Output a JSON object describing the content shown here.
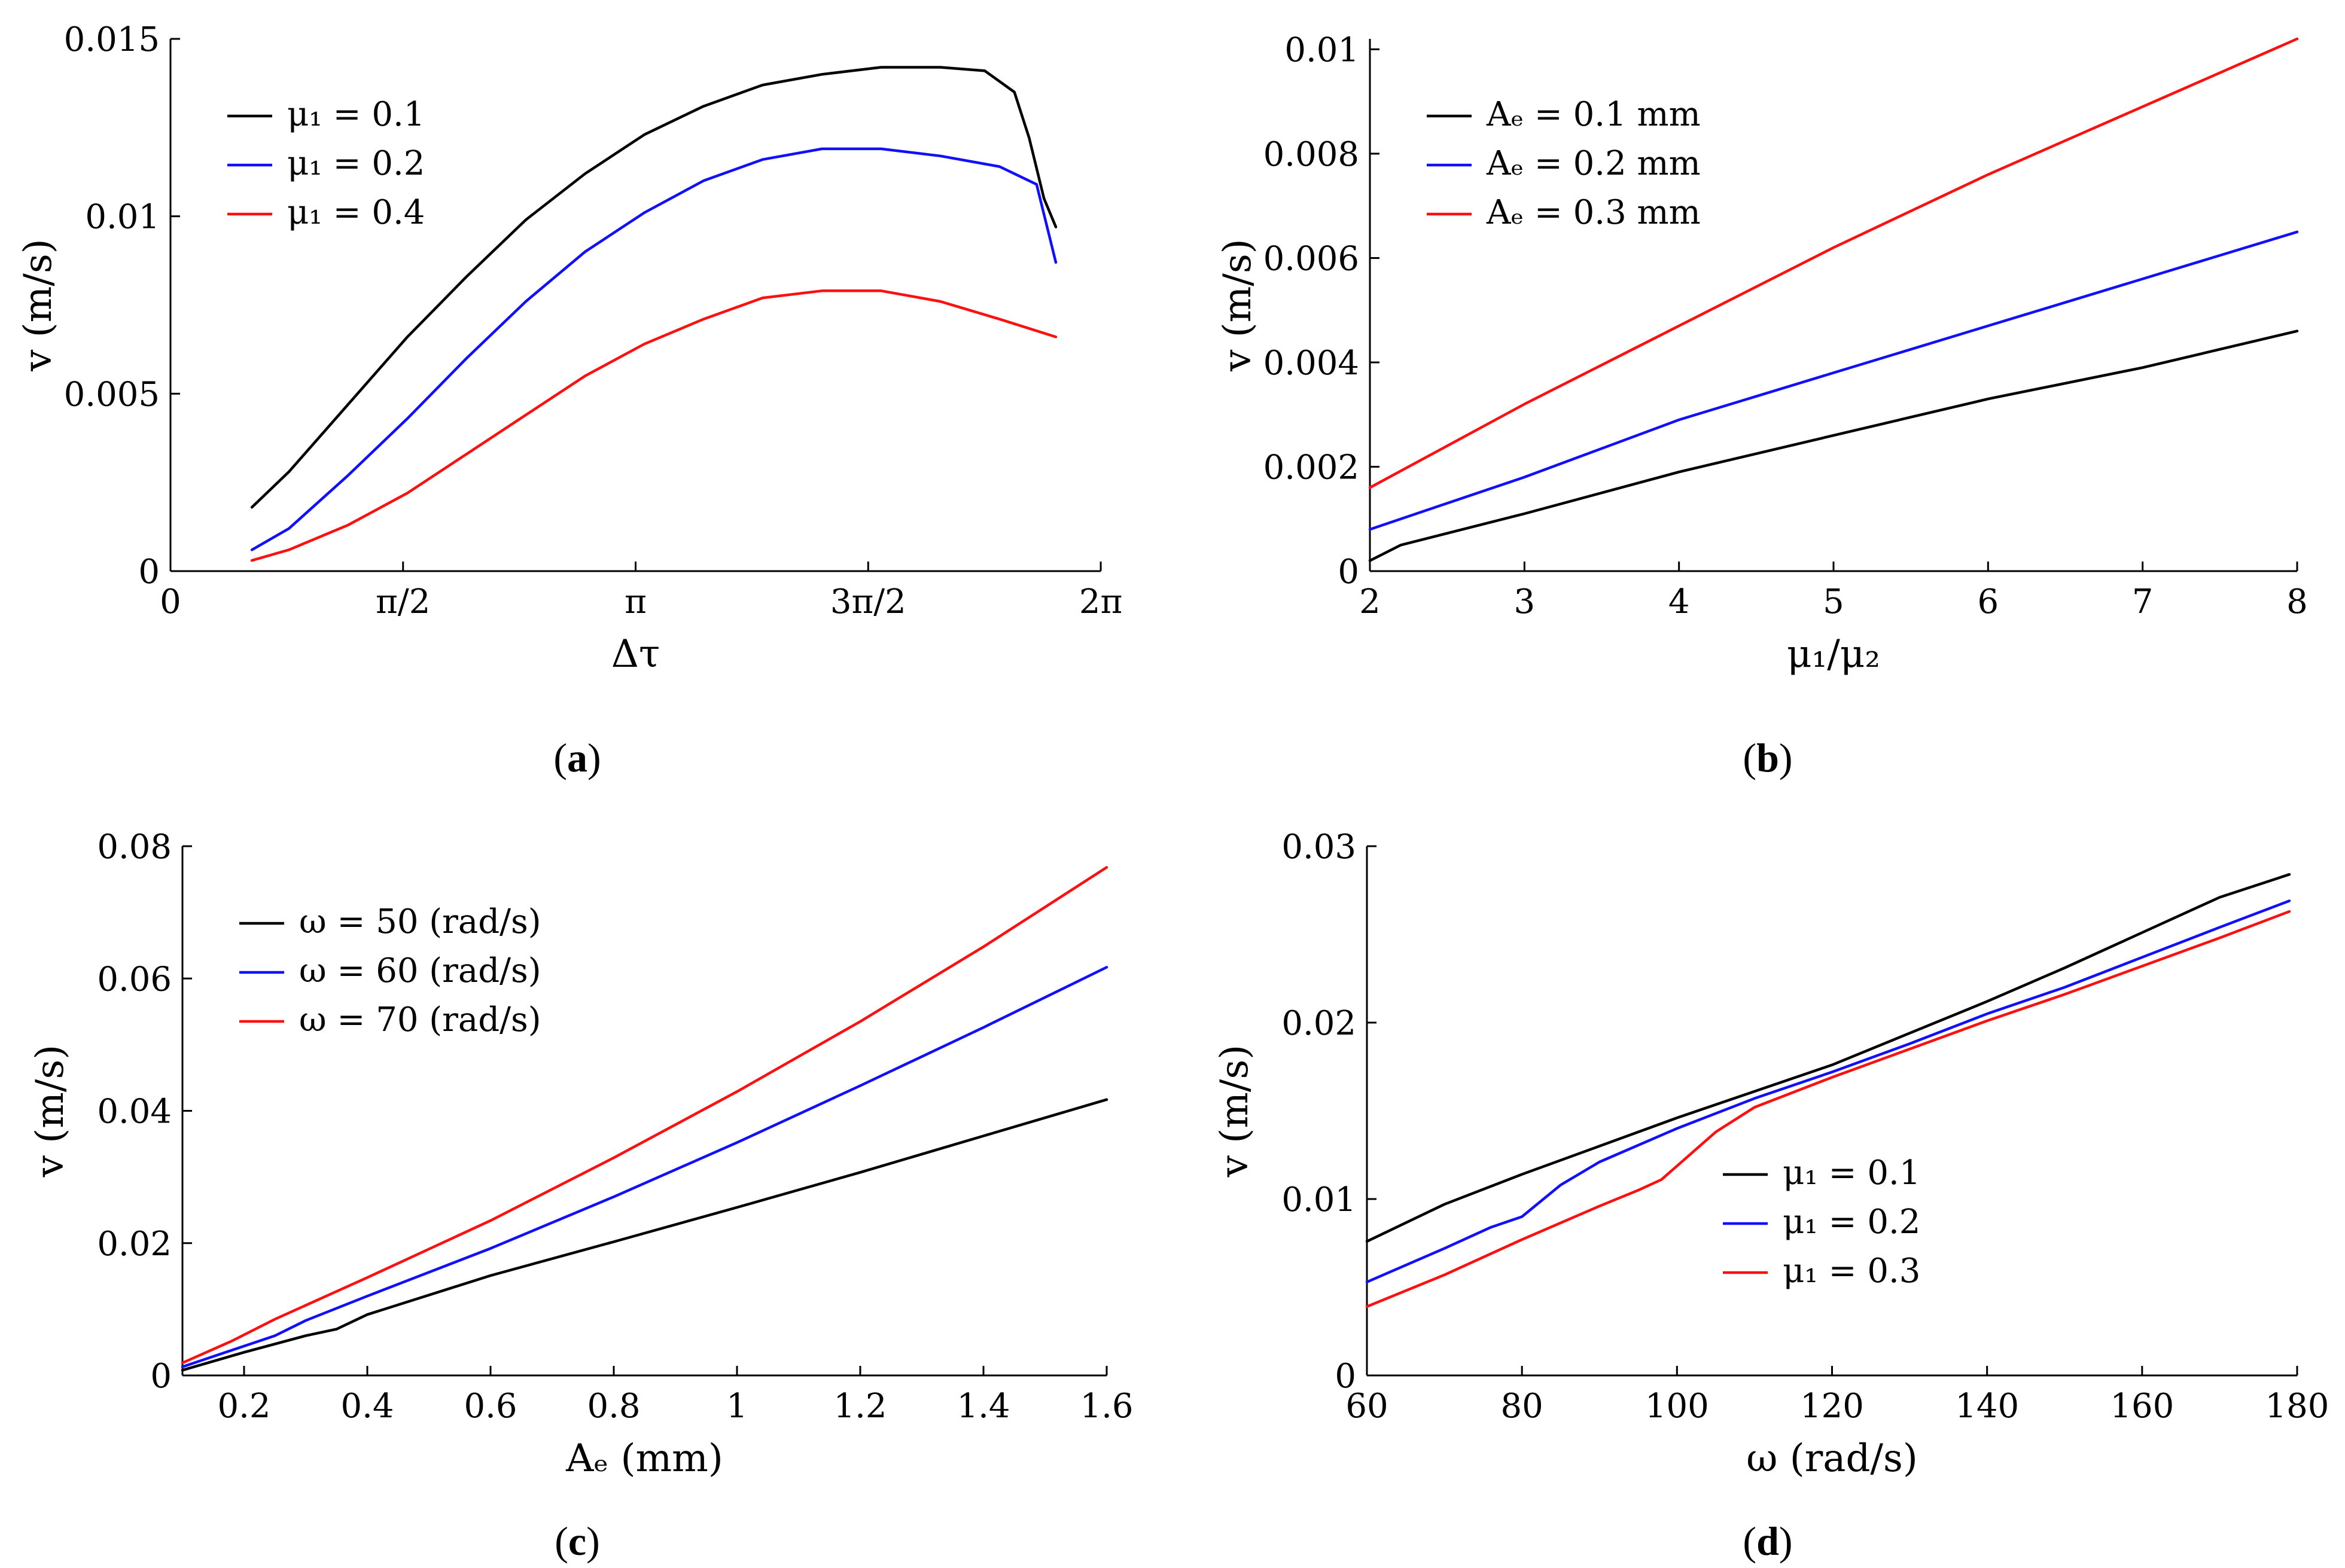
{
  "figure": {
    "colors": {
      "black": "#000000",
      "blue": "#1010ff",
      "red": "#ff1010"
    }
  },
  "chart_data": [
    {
      "id": "a",
      "type": "line",
      "caption_letter": "a",
      "xlabel": "Δτ",
      "ylabel": "v (m/s)",
      "xlim": [
        0,
        6.283
      ],
      "ylim": [
        0,
        0.015
      ],
      "x_ticks": [
        0,
        1.5708,
        3.1416,
        4.7124,
        6.2832
      ],
      "x_tick_labels": [
        "0",
        "π/2",
        "π",
        "3π/2",
        "2π"
      ],
      "y_ticks": [
        0,
        0.005,
        0.01,
        0.015
      ],
      "y_tick_labels": [
        "0",
        "0.005",
        "0.01",
        "0.015"
      ],
      "legend_position": "top-left",
      "series": [
        {
          "name": "μ₁ = 0.1",
          "color": "#000000",
          "x": [
            0.55,
            0.8,
            1.2,
            1.6,
            2.0,
            2.4,
            2.8,
            3.2,
            3.6,
            4.0,
            4.4,
            4.8,
            5.2,
            5.5,
            5.7,
            5.8,
            5.9,
            5.98
          ],
          "y": [
            0.0018,
            0.0028,
            0.0047,
            0.0066,
            0.0083,
            0.0099,
            0.0112,
            0.0123,
            0.0131,
            0.0137,
            0.014,
            0.0142,
            0.0142,
            0.0141,
            0.0135,
            0.0122,
            0.0105,
            0.0097
          ]
        },
        {
          "name": "μ₁ = 0.2",
          "color": "#1010ff",
          "x": [
            0.55,
            0.8,
            1.2,
            1.6,
            2.0,
            2.4,
            2.8,
            3.2,
            3.6,
            4.0,
            4.4,
            4.8,
            5.2,
            5.6,
            5.85,
            5.98
          ],
          "y": [
            0.0006,
            0.0012,
            0.0027,
            0.0043,
            0.006,
            0.0076,
            0.009,
            0.0101,
            0.011,
            0.0116,
            0.0119,
            0.0119,
            0.0117,
            0.0114,
            0.0109,
            0.0087
          ]
        },
        {
          "name": "μ₁ = 0.4",
          "color": "#ff1010",
          "x": [
            0.55,
            0.8,
            1.2,
            1.6,
            2.0,
            2.4,
            2.8,
            3.2,
            3.6,
            4.0,
            4.4,
            4.8,
            5.2,
            5.6,
            5.98
          ],
          "y": [
            0.0003,
            0.0006,
            0.0013,
            0.0022,
            0.0033,
            0.0044,
            0.0055,
            0.0064,
            0.0071,
            0.0077,
            0.0079,
            0.0079,
            0.0076,
            0.0071,
            0.0066
          ]
        }
      ]
    },
    {
      "id": "b",
      "type": "line",
      "caption_letter": "b",
      "xlabel": "μ₁/μ₂",
      "ylabel": "v (m/s)",
      "xlim": [
        2,
        8
      ],
      "ylim": [
        0,
        0.0102
      ],
      "x_ticks": [
        2,
        3,
        4,
        5,
        6,
        7,
        8
      ],
      "x_tick_labels": [
        "2",
        "3",
        "4",
        "5",
        "6",
        "7",
        "8"
      ],
      "y_ticks": [
        0,
        0.002,
        0.004,
        0.006,
        0.008,
        0.01
      ],
      "y_tick_labels": [
        "0",
        "0.002",
        "0.004",
        "0.006",
        "0.008",
        "0.01"
      ],
      "legend_position": "top-left",
      "series": [
        {
          "name": "Aₑ = 0.1 mm",
          "color": "#000000",
          "x": [
            2,
            2.2,
            3,
            4,
            5,
            6,
            7,
            8
          ],
          "y": [
            0.0002,
            0.0005,
            0.0011,
            0.0019,
            0.0026,
            0.0033,
            0.0039,
            0.0046
          ]
        },
        {
          "name": "Aₑ = 0.2 mm",
          "color": "#1010ff",
          "x": [
            2,
            3,
            4,
            5,
            6,
            7,
            8
          ],
          "y": [
            0.0008,
            0.0018,
            0.0029,
            0.0038,
            0.0047,
            0.0056,
            0.0065
          ]
        },
        {
          "name": "Aₑ = 0.3 mm",
          "color": "#ff1010",
          "x": [
            2,
            3,
            4,
            5,
            6,
            7,
            8
          ],
          "y": [
            0.0016,
            0.0032,
            0.0047,
            0.0062,
            0.0076,
            0.0089,
            0.0102
          ]
        }
      ]
    },
    {
      "id": "c",
      "type": "line",
      "caption_letter": "c",
      "xlabel": "Aₑ (mm)",
      "ylabel": "v (m/s)",
      "xlim": [
        0.1,
        1.6
      ],
      "ylim": [
        0,
        0.08
      ],
      "x_ticks": [
        0.2,
        0.4,
        0.6,
        0.8,
        1.0,
        1.2,
        1.4,
        1.6
      ],
      "x_tick_labels": [
        "0.2",
        "0.4",
        "0.6",
        "0.8",
        "1",
        "1.2",
        "1.4",
        "1.6"
      ],
      "y_ticks": [
        0,
        0.02,
        0.04,
        0.06,
        0.08
      ],
      "y_tick_labels": [
        "0",
        "0.02",
        "0.04",
        "0.06",
        "0.08"
      ],
      "legend_position": "top-left",
      "series": [
        {
          "name": "ω = 50 (rad/s)",
          "color": "#000000",
          "x": [
            0.1,
            0.2,
            0.3,
            0.35,
            0.4,
            0.6,
            0.8,
            1.0,
            1.2,
            1.4,
            1.6
          ],
          "y": [
            0.0008,
            0.0035,
            0.006,
            0.007,
            0.0092,
            0.0151,
            0.0202,
            0.0254,
            0.0307,
            0.0362,
            0.0417
          ]
        },
        {
          "name": "ω = 60 (rad/s)",
          "color": "#1010ff",
          "x": [
            0.1,
            0.25,
            0.3,
            0.4,
            0.6,
            0.8,
            1.0,
            1.2,
            1.4,
            1.6
          ],
          "y": [
            0.0013,
            0.006,
            0.0083,
            0.012,
            0.0192,
            0.027,
            0.0352,
            0.0438,
            0.0526,
            0.0617
          ]
        },
        {
          "name": "ω = 70 (rad/s)",
          "color": "#ff1010",
          "x": [
            0.1,
            0.18,
            0.25,
            0.4,
            0.6,
            0.8,
            1.0,
            1.2,
            1.4,
            1.6
          ],
          "y": [
            0.0019,
            0.0052,
            0.0085,
            0.0148,
            0.0234,
            0.0329,
            0.0429,
            0.0535,
            0.0648,
            0.0768
          ]
        }
      ]
    },
    {
      "id": "d",
      "type": "line",
      "caption_letter": "d",
      "xlabel": "ω (rad/s)",
      "ylabel": "v (m/s)",
      "xlim": [
        60,
        180
      ],
      "ylim": [
        0,
        0.03
      ],
      "x_ticks": [
        60,
        80,
        100,
        120,
        140,
        160,
        180
      ],
      "x_tick_labels": [
        "60",
        "80",
        "100",
        "120",
        "140",
        "160",
        "180"
      ],
      "y_ticks": [
        0,
        0.01,
        0.02,
        0.03
      ],
      "y_tick_labels": [
        "0",
        "0.01",
        "0.02",
        "0.03"
      ],
      "legend_position": "bottom-right",
      "series": [
        {
          "name": "μ₁ = 0.1",
          "color": "#000000",
          "x": [
            60,
            70,
            80,
            90,
            100,
            110,
            120,
            130,
            140,
            150,
            160,
            170,
            179
          ],
          "y": [
            0.0076,
            0.0097,
            0.0114,
            0.013,
            0.0146,
            0.0161,
            0.0176,
            0.0194,
            0.0212,
            0.0231,
            0.0251,
            0.0271,
            0.0284
          ]
        },
        {
          "name": "μ₁ = 0.2",
          "color": "#1010ff",
          "x": [
            60,
            70,
            76,
            80,
            85,
            90,
            100,
            110,
            120,
            130,
            140,
            150,
            160,
            170,
            179
          ],
          "y": [
            0.0053,
            0.0072,
            0.0084,
            0.009,
            0.0108,
            0.0121,
            0.014,
            0.0157,
            0.0172,
            0.0188,
            0.0205,
            0.022,
            0.0237,
            0.0254,
            0.0269
          ]
        },
        {
          "name": "μ₁ = 0.3",
          "color": "#ff1010",
          "x": [
            60,
            70,
            80,
            90,
            95,
            98,
            105,
            110,
            120,
            130,
            140,
            150,
            160,
            170,
            179
          ],
          "y": [
            0.0039,
            0.0057,
            0.0077,
            0.0096,
            0.0105,
            0.0111,
            0.0138,
            0.0152,
            0.0169,
            0.0185,
            0.0201,
            0.0216,
            0.0232,
            0.0248,
            0.0263
          ]
        }
      ]
    }
  ]
}
